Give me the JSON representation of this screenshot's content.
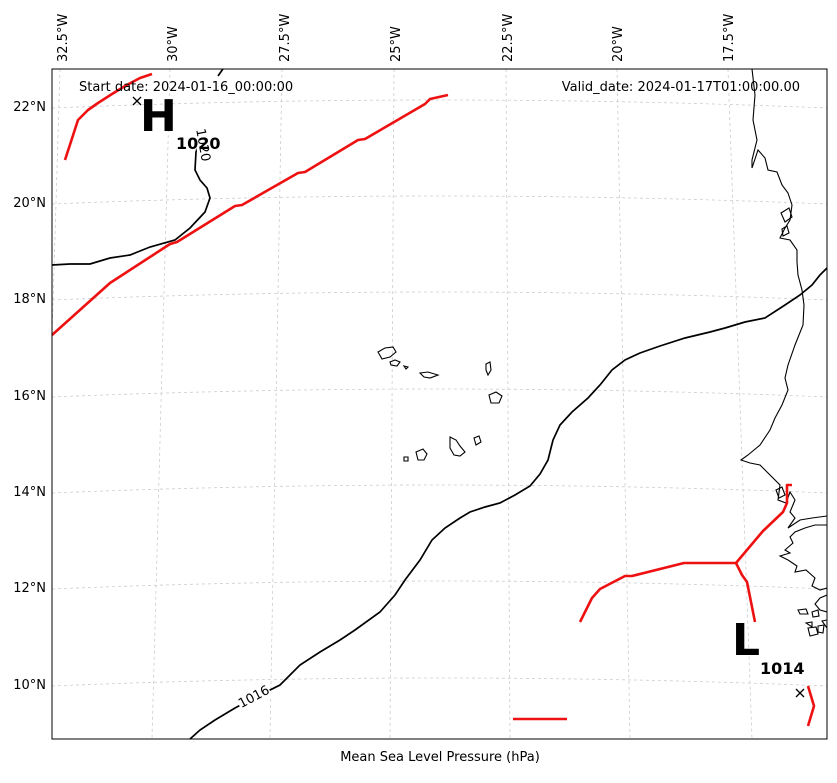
{
  "header": {
    "start_date": "Start date: 2024-01-16_00:00:00",
    "valid_date": "Valid_date: 2024-01-17T01:00:00.00"
  },
  "caption": "Mean Sea Level Pressure (hPa)",
  "axes": {
    "lon_ticks": [
      "32.5°W",
      "30°W",
      "27.5°W",
      "25°W",
      "22.5°W",
      "20°W",
      "17.5°W"
    ],
    "lat_ticks": [
      "22°N",
      "20°N",
      "18°N",
      "16°N",
      "14°N",
      "12°N",
      "10°N"
    ]
  },
  "pressure_centers": {
    "high": {
      "letter": "H",
      "value": "1020"
    },
    "low": {
      "letter": "L",
      "value": "1014"
    }
  },
  "contour_labels": {
    "c1020": "1020",
    "c1016": "1016"
  },
  "colors": {
    "isobar": "#000000",
    "front": "#ee1111",
    "grid": "#cccccc",
    "coast": "#000000"
  }
}
